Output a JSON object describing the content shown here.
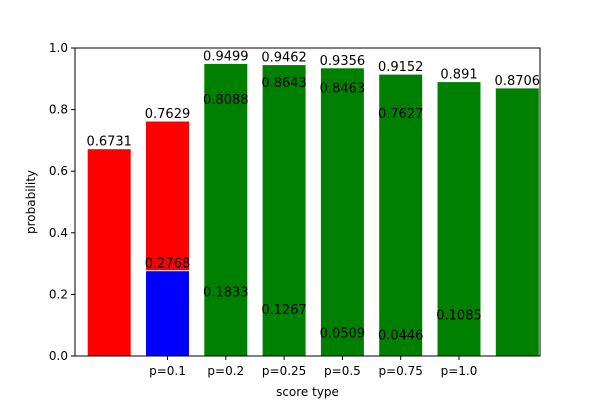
{
  "chart_data": {
    "type": "bar",
    "categories": [
      "p=0.1",
      "p=0.2",
      "p=0.25",
      "p=0.5",
      "p=0.75",
      "p=1.0"
    ],
    "xlabel": "score type",
    "ylabel": "probability",
    "ylim": [
      0,
      1.0
    ],
    "yticks": [
      "0.0",
      "0.2",
      "0.4",
      "0.6",
      "0.8",
      "1.0"
    ],
    "grid": false,
    "bar_edge_color": "#ffffff",
    "series": [
      {
        "color": "#ff0000",
        "values": [
          0.6731,
          0.7629,
          0.8088,
          0.8643,
          0.8463,
          0.7627
        ],
        "labels": [
          "0.6731",
          "0.7629",
          "0.8088",
          "0.8643",
          "0.8463",
          "0.7627"
        ]
      },
      {
        "color": "#0000ff",
        "values": [
          0.2768,
          0.1833,
          0.1267,
          0.0509,
          0.0446,
          0.1085
        ],
        "labels": [
          "0.2768",
          "0.1833",
          "0.1267",
          "0.0509",
          "0.0446",
          "0.1085"
        ]
      },
      {
        "color": "#008000",
        "values": [
          0.9499,
          0.9462,
          0.9356,
          0.9152,
          0.891,
          0.8706
        ],
        "labels": [
          "0.9499",
          "0.9462",
          "0.9356",
          "0.9152",
          "0.891",
          "0.8706"
        ]
      }
    ]
  }
}
